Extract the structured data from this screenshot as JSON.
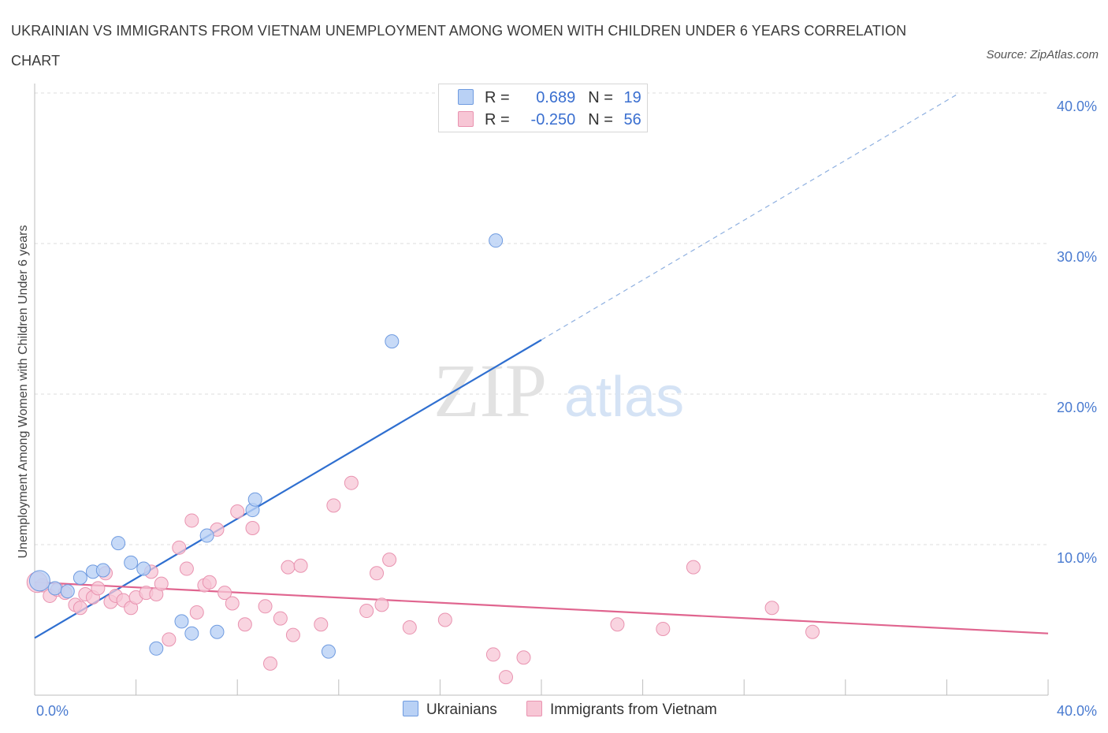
{
  "header": {
    "title": "UKRAINIAN VS IMMIGRANTS FROM VIETNAM UNEMPLOYMENT AMONG WOMEN WITH CHILDREN UNDER 6 YEARS CORRELATION CHART",
    "source": "Source: ZipAtlas.com"
  },
  "watermark": {
    "zip": "ZIP",
    "atlas": "atlas"
  },
  "legend": {
    "rows": [
      {
        "r_label": "R =",
        "r_value": "0.689",
        "n_label": "N =",
        "n_value": "19"
      },
      {
        "r_label": "R =",
        "r_value": "-0.250",
        "n_label": "N =",
        "n_value": "56"
      }
    ]
  },
  "colors": {
    "ukrainians_fill": "#b9d1f5",
    "ukrainians_stroke": "#6f9be0",
    "ukrainians_line": "#2f6fd0",
    "vietnam_fill": "#f7c6d5",
    "vietnam_stroke": "#e993b0",
    "vietnam_line": "#e0658f",
    "tick_text": "#4a7bd0"
  },
  "chart_data": {
    "type": "scatter",
    "title": "UKRAINIAN VS IMMIGRANTS FROM VIETNAM UNEMPLOYMENT AMONG WOMEN WITH CHILDREN UNDER 6 YEARS CORRELATION CHART",
    "xlabel": "",
    "ylabel": "Unemployment Among Women with Children Under 6 years",
    "xlim": [
      0,
      40
    ],
    "ylim": [
      0,
      40
    ],
    "x_tick_labels": [
      "0.0%",
      "40.0%"
    ],
    "y_ticks": [
      10,
      20,
      30,
      40
    ],
    "y_tick_labels": [
      "10.0%",
      "20.0%",
      "30.0%",
      "40.0%"
    ],
    "grid": true,
    "legend_position": "top-center",
    "series": [
      {
        "name": "Ukrainians",
        "points": [
          [
            0.2,
            7.6
          ],
          [
            0.8,
            7.1
          ],
          [
            1.3,
            6.9
          ],
          [
            1.8,
            7.8
          ],
          [
            2.3,
            8.2
          ],
          [
            2.7,
            8.3
          ],
          [
            3.3,
            10.1
          ],
          [
            3.8,
            8.8
          ],
          [
            4.3,
            8.4
          ],
          [
            4.8,
            3.1
          ],
          [
            5.8,
            4.9
          ],
          [
            6.2,
            4.1
          ],
          [
            6.8,
            10.6
          ],
          [
            7.2,
            4.2
          ],
          [
            8.6,
            12.3
          ],
          [
            8.7,
            13.0
          ],
          [
            11.6,
            2.9
          ],
          [
            14.1,
            23.5
          ],
          [
            18.2,
            30.2
          ]
        ],
        "trend": {
          "x0": 0,
          "y0": 3.8,
          "x1": 20,
          "y1": 23.6,
          "dashed_to_x": 36.5,
          "dashed_to_y": 40
        }
      },
      {
        "name": "Immigrants from Vietnam",
        "points": [
          [
            0.3,
            7.3
          ],
          [
            0.6,
            6.6
          ],
          [
            0.9,
            7.0
          ],
          [
            1.2,
            6.8
          ],
          [
            1.6,
            6.0
          ],
          [
            1.8,
            5.8
          ],
          [
            2.0,
            6.7
          ],
          [
            2.3,
            6.5
          ],
          [
            2.5,
            7.1
          ],
          [
            2.8,
            8.1
          ],
          [
            3.0,
            6.2
          ],
          [
            3.2,
            6.6
          ],
          [
            3.5,
            6.3
          ],
          [
            3.8,
            5.8
          ],
          [
            4.0,
            6.5
          ],
          [
            4.4,
            6.8
          ],
          [
            4.6,
            8.2
          ],
          [
            4.8,
            6.7
          ],
          [
            5.0,
            7.4
          ],
          [
            5.3,
            3.7
          ],
          [
            5.7,
            9.8
          ],
          [
            6.0,
            8.4
          ],
          [
            6.2,
            11.6
          ],
          [
            6.4,
            5.5
          ],
          [
            6.7,
            7.3
          ],
          [
            6.9,
            7.5
          ],
          [
            7.2,
            11.0
          ],
          [
            7.5,
            6.8
          ],
          [
            7.8,
            6.1
          ],
          [
            8.0,
            12.2
          ],
          [
            8.3,
            4.7
          ],
          [
            8.6,
            11.1
          ],
          [
            9.1,
            5.9
          ],
          [
            9.3,
            2.1
          ],
          [
            9.7,
            5.1
          ],
          [
            10.0,
            8.5
          ],
          [
            10.2,
            4.0
          ],
          [
            10.5,
            8.6
          ],
          [
            11.3,
            4.7
          ],
          [
            11.8,
            12.6
          ],
          [
            12.5,
            14.1
          ],
          [
            13.1,
            5.6
          ],
          [
            13.5,
            8.1
          ],
          [
            13.7,
            6.0
          ],
          [
            14.0,
            9.0
          ],
          [
            14.8,
            4.5
          ],
          [
            16.2,
            5.0
          ],
          [
            18.1,
            2.7
          ],
          [
            18.6,
            1.2
          ],
          [
            19.3,
            2.5
          ],
          [
            23.0,
            4.7
          ],
          [
            24.8,
            4.4
          ],
          [
            26.0,
            8.5
          ],
          [
            29.1,
            5.8
          ],
          [
            30.7,
            4.2
          ],
          [
            0.1,
            7.5
          ]
        ],
        "trend": {
          "x0": 0,
          "y0": 7.5,
          "x1": 40,
          "y1": 4.1
        }
      }
    ]
  }
}
